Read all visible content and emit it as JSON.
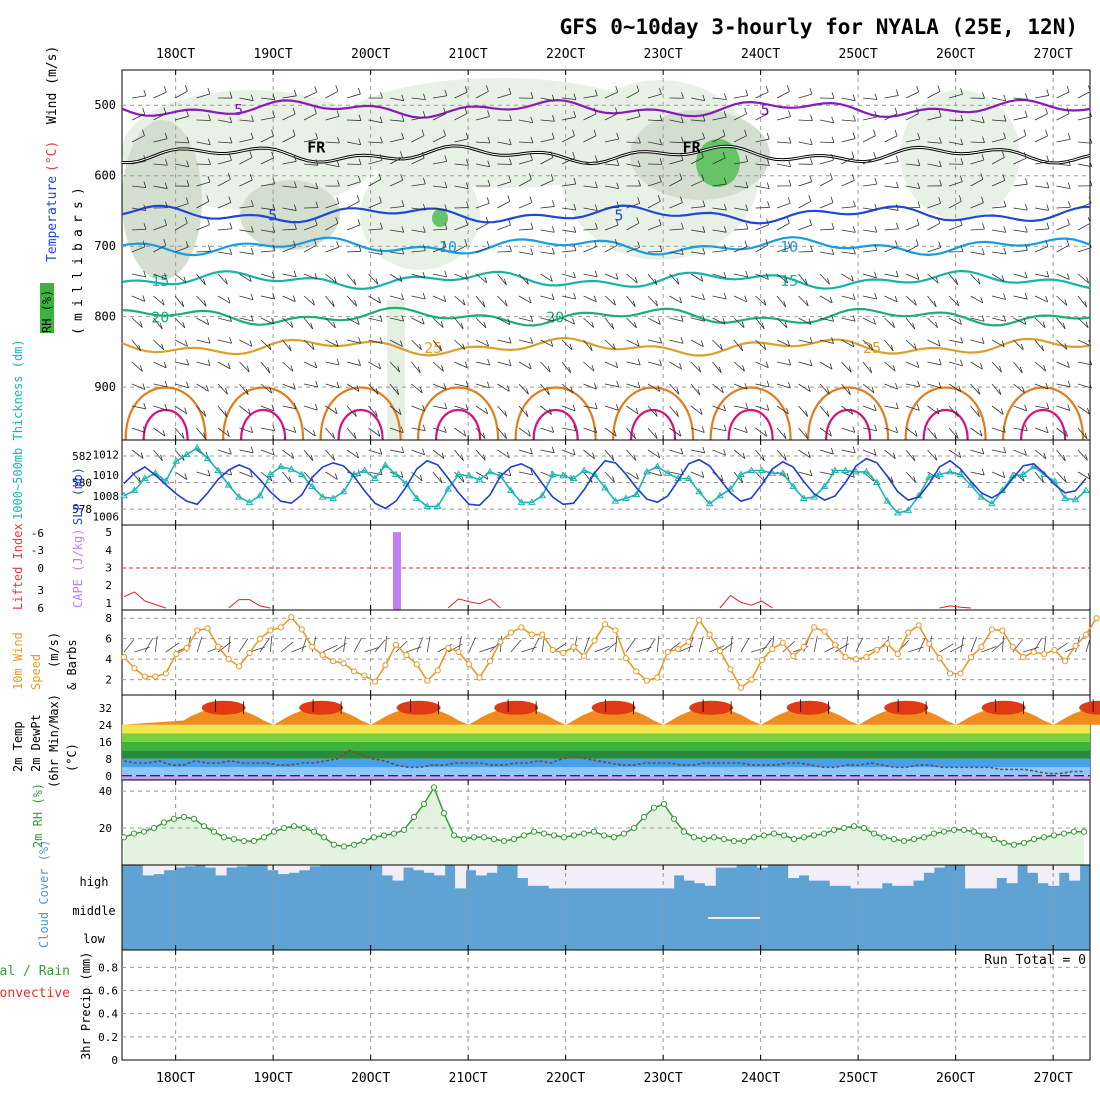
{
  "title": "GFS 0~10day 3-hourly for NYALA (25E, 12N)",
  "dates": [
    "18OCT",
    "19OCT",
    "20OCT",
    "21OCT",
    "22OCT",
    "23OCT",
    "24OCT",
    "25OCT",
    "26OCT",
    "27OCT"
  ],
  "run_total": "Run Total = 0",
  "colors": {
    "purple": "#8a1ab8",
    "black": "#000000",
    "blue": "#1f48d6",
    "skyblue": "#1a9ce0",
    "teal": "#16b4a8",
    "green": "#1fae74",
    "gold": "#dca02a",
    "orange": "#e07d1e",
    "magenta": "#d8137a",
    "cloud": "#5fa3d4",
    "rh_green": "#4ca84c",
    "precip": "#e83030"
  },
  "chart_data": [
    {
      "type": "line",
      "panel": "sounding",
      "title": "Temperature (°C) / Wind (m/s) / RH (%)",
      "ylabel": "(millibars)",
      "ylabel_letters": [
        "(",
        "m",
        "i",
        "l",
        "l",
        "i",
        "b",
        "a",
        "r",
        "s",
        ")"
      ],
      "label_rh": "RH (%)",
      "label_temp": "Temperature",
      "label_temp_unit": "(°C)",
      "label_wind": "Wind (m/s)",
      "y_ticks": [
        500,
        600,
        700,
        800,
        900
      ],
      "ylim": [
        450,
        975
      ],
      "isotherms": [
        {
          "name": "5 upper",
          "level_mb": 505,
          "color": "#8a1ab8",
          "labels": [
            {
              "day": 0.6,
              "text": "5"
            },
            {
              "day": 6.0,
              "text": "5"
            }
          ]
        },
        {
          "name": "FR",
          "level_mb": 570,
          "color": "#000000",
          "labels": [
            {
              "day": 1.35,
              "text": "FR"
            },
            {
              "day": 5.2,
              "text": "FR"
            }
          ]
        },
        {
          "name": "5",
          "level_mb": 655,
          "color": "#1f48d6",
          "labels": [
            {
              "day": 0.95,
              "text": "5"
            },
            {
              "day": 4.5,
              "text": "5"
            }
          ]
        },
        {
          "name": "10",
          "level_mb": 700,
          "color": "#1a9ce0",
          "labels": [
            {
              "day": 2.7,
              "text": "10"
            },
            {
              "day": 6.2,
              "text": "10"
            }
          ]
        },
        {
          "name": "15",
          "level_mb": 748,
          "color": "#16b4a8",
          "labels": [
            {
              "day": -0.25,
              "text": "15"
            },
            {
              "day": 6.2,
              "text": "15"
            }
          ]
        },
        {
          "name": "20",
          "level_mb": 800,
          "color": "#1fae74",
          "labels": [
            {
              "day": -0.25,
              "text": "20"
            },
            {
              "day": 3.8,
              "text": "20"
            }
          ]
        },
        {
          "name": "25",
          "level_mb": 843,
          "color": "#dca02a",
          "labels": [
            {
              "day": 2.55,
              "text": "25"
            },
            {
              "day": 7.05,
              "text": "25"
            }
          ]
        }
      ]
    },
    {
      "type": "line",
      "panel": "thickness_slp",
      "ylabel_left": "1000~500mb Thickness (dm)",
      "ylabel_right": "SLP (mb)",
      "left_ticks": [
        578,
        580,
        582
      ],
      "right_ticks": [
        1006,
        1008,
        1010,
        1012
      ],
      "series": [
        {
          "name": "Thickness",
          "color": "#1fb3b3",
          "values": [
            579.0,
            579.4,
            580.3,
            580.7,
            580.1,
            581.6,
            582.1,
            582.6,
            581.8,
            580.9,
            579.8,
            578.9,
            578.5,
            579.0,
            580.6,
            581.2,
            581.0,
            580.6,
            579.7,
            578.9,
            578.8,
            579.3,
            580.6,
            580.9,
            580.3,
            581.3,
            580.6,
            579.9,
            578.8,
            578.2,
            578.2,
            579.5,
            580.6,
            580.5,
            580.2,
            580.8,
            580.5,
            579.4,
            578.5,
            578.5,
            579.0,
            580.6,
            580.5,
            580.3,
            580.9,
            580.6,
            579.6,
            578.6,
            578.8,
            579.1,
            580.8,
            581.2,
            580.7,
            580.3,
            580.3,
            579.3,
            578.4,
            579.0,
            579.5,
            580.6,
            580.9,
            580.9,
            580.7,
            580.7,
            579.7,
            578.8,
            578.9,
            579.7,
            580.9,
            580.9,
            580.8,
            580.8,
            580.0,
            578.6,
            577.7,
            577.9,
            579.0,
            580.4,
            580.6,
            580.8,
            580.6,
            579.8,
            578.9,
            578.4,
            579.4,
            580.5,
            580.6,
            581.2,
            580.6,
            580.1,
            578.8,
            578.7,
            579.4
          ]
        },
        {
          "name": "SLP",
          "color": "#1f3fd0",
          "values": [
            1009.2,
            1010.2,
            1010.8,
            1010.0,
            1009.1,
            1008.2,
            1007.5,
            1007.2,
            1008.3,
            1009.6,
            1010.5,
            1011.0,
            1010.6,
            1009.6,
            1008.4,
            1007.5,
            1007.3,
            1008.1,
            1009.8,
            1010.8,
            1011.2,
            1010.9,
            1009.9,
            1008.5,
            1007.3,
            1006.8,
            1007.5,
            1008.9,
            1010.6,
            1011.4,
            1011.0,
            1009.7,
            1008.3,
            1007.2,
            1007.1,
            1008.1,
            1009.9,
            1010.8,
            1011.1,
            1010.6,
            1009.2,
            1007.9,
            1007.2,
            1007.3,
            1008.6,
            1010.2,
            1011.4,
            1011.2,
            1010.1,
            1008.8,
            1007.7,
            1007.4,
            1008.0,
            1009.5,
            1011.1,
            1011.5,
            1010.9,
            1009.6,
            1008.3,
            1007.5,
            1007.8,
            1009.1,
            1010.6,
            1011.3,
            1010.8,
            1009.4,
            1008.2,
            1007.6,
            1008.0,
            1009.3,
            1010.9,
            1011.6,
            1011.2,
            1009.9,
            1008.4,
            1007.6,
            1007.9,
            1009.2,
            1010.8,
            1011.4,
            1010.6,
            1009.4,
            1008.3,
            1007.8,
            1008.4,
            1009.7,
            1010.9,
            1011.1,
            1010.2,
            1009.1,
            1008.3,
            1008.5,
            1009.7
          ]
        }
      ]
    },
    {
      "type": "line",
      "panel": "cape_li",
      "ylabel_left": "Lifted Index",
      "ylabel_right": "CAPE (J/kg)",
      "left_ticks": [
        "-6",
        "-3",
        "0",
        "3",
        "6"
      ],
      "right_ticks": [
        1,
        2,
        3,
        4,
        5
      ],
      "cape_bar": {
        "day": 2.27,
        "value": 5.0,
        "color": "#c080f0"
      },
      "li_series": {
        "color": "#e02020",
        "values": [
          1.6,
          2.3,
          1.0,
          0.5,
          0,
          0,
          0,
          0,
          0,
          0,
          0,
          1.2,
          1.2,
          0.3,
          0,
          0,
          0,
          0,
          0,
          0,
          0,
          0,
          0,
          0,
          0,
          0,
          0,
          0,
          0,
          0,
          0,
          0,
          1.3,
          0.9,
          0.6,
          1.3,
          0,
          0,
          0,
          0,
          0,
          0,
          0,
          0,
          0,
          0,
          0,
          0,
          0,
          0,
          0,
          0,
          0,
          0,
          0,
          0,
          0,
          0,
          1.8,
          0.8,
          0.4,
          1.0,
          0,
          0,
          0,
          0,
          0,
          0,
          0,
          0,
          0,
          0,
          0,
          0,
          0,
          0,
          0,
          0,
          0,
          0.3,
          0.1,
          0,
          0,
          0,
          0,
          0,
          0,
          0,
          0,
          0,
          0,
          0,
          0
        ]
      }
    },
    {
      "type": "line",
      "panel": "wind10m",
      "ylabel": "10m Wind Speed (m/s) & Barbs",
      "ylabel_lines": [
        "10m Wind",
        "Speed",
        "(m/s)",
        "& Barbs"
      ],
      "y_ticks": [
        2,
        4,
        6,
        8
      ],
      "series": [
        {
          "name": "Speed",
          "color": "#e89a2a",
          "values": [
            4.2,
            3.1,
            2.3,
            2.3,
            2.6,
            4.5,
            5.1,
            6.8,
            7.0,
            5.2,
            4.0,
            3.3,
            4.6,
            6.0,
            6.8,
            7.1,
            8.1,
            6.9,
            5.2,
            4.4,
            3.8,
            3.6,
            2.8,
            2.4,
            1.8,
            3.4,
            5.4,
            4.4,
            3.5,
            1.9,
            2.9,
            5.1,
            4.7,
            3.5,
            2.2,
            3.8,
            5.7,
            6.6,
            7.1,
            6.4,
            6.4,
            4.9,
            4.6,
            5.2,
            4.3,
            5.8,
            7.4,
            6.8,
            4.1,
            2.8,
            1.9,
            2.2,
            4.7,
            5.0,
            5.7,
            7.8,
            6.4,
            4.8,
            3.0,
            1.2,
            2.0,
            3.9,
            5.0,
            5.6,
            4.3,
            5.2,
            7.1,
            6.7,
            5.4,
            4.2,
            4.0,
            4.2,
            4.9,
            5.5,
            4.5,
            6.6,
            7.3,
            5.5,
            4.1,
            2.6,
            2.6,
            4.2,
            5.2,
            6.9,
            6.8,
            5.2,
            4.2,
            4.7,
            4.5,
            4.9,
            3.8,
            5.3,
            6.4,
            8.0
          ]
        }
      ]
    },
    {
      "type": "area",
      "panel": "temp_dewpt",
      "ylabel_lines": [
        "2m Temp",
        "2m DewPt",
        "(6hr Min/Max)",
        "(°C)"
      ],
      "y_ticks": [
        0,
        8,
        16,
        24,
        32
      ],
      "temp_min": 24,
      "temp_max": 35,
      "dewpoint": [
        7,
        6,
        6,
        7,
        5,
        5,
        7,
        6,
        6,
        7,
        6,
        6,
        6,
        5,
        5,
        6,
        6,
        7,
        8,
        12,
        10,
        8,
        7,
        5,
        4,
        4,
        5,
        5,
        6,
        6,
        6,
        5,
        5,
        6,
        6,
        7,
        6,
        8,
        9,
        8,
        7,
        6,
        5,
        5,
        6,
        6,
        6,
        5,
        5,
        6,
        6,
        6,
        6,
        5,
        5,
        5,
        6,
        6,
        5,
        4,
        4,
        5,
        5,
        6,
        5,
        4,
        4,
        5,
        5,
        4,
        4,
        4,
        4,
        4,
        3,
        3,
        3,
        2,
        1,
        1,
        2,
        2
      ]
    },
    {
      "type": "area",
      "panel": "rh2m",
      "ylabel": "2m RH (%)",
      "y_ticks": [
        20,
        40
      ],
      "series": [
        {
          "name": "RH",
          "color": "#3a9a3a",
          "values": [
            15,
            17,
            18,
            20,
            23,
            25,
            26,
            25,
            21,
            18,
            15,
            14,
            13,
            13,
            15,
            18,
            20,
            21,
            20,
            18,
            15,
            11,
            10,
            11,
            13,
            15,
            16,
            17,
            19,
            26,
            33,
            42,
            28,
            16,
            14,
            15,
            15,
            14,
            13,
            14,
            16,
            18,
            17,
            16,
            15,
            16,
            17,
            18,
            16,
            15,
            17,
            20,
            26,
            31,
            33,
            25,
            18,
            15,
            14,
            15,
            14,
            13,
            13,
            15,
            16,
            17,
            16,
            14,
            15,
            16,
            17,
            19,
            20,
            21,
            20,
            17,
            15,
            14,
            13,
            14,
            15,
            17,
            18,
            19,
            19,
            18,
            16,
            14,
            12,
            11,
            12,
            14,
            15,
            16,
            17,
            18,
            18
          ]
        }
      ]
    },
    {
      "type": "bar",
      "panel": "cloud_cover",
      "ylabel": "Cloud Cover (%)",
      "levels": [
        "high",
        "middle",
        "low"
      ],
      "high_gaps": [
        0.0,
        0.0,
        0.4,
        0.35,
        0.2,
        0.1,
        0.05,
        0.0,
        0.1,
        0.4,
        0.1,
        0.05,
        0.0,
        0.0,
        0.2,
        0.35,
        0.3,
        0.2,
        0.05,
        0.0,
        0.0,
        0.0,
        0.0,
        0.0,
        0.0,
        0.4,
        0.6,
        0.1,
        0.2,
        0.3,
        0.4,
        0.0,
        0.9,
        0.2,
        0.4,
        0.3,
        0.0,
        0.0,
        0.5,
        0.8,
        0.8,
        0.9,
        0.9,
        0.9,
        0.9,
        0.9,
        0.9,
        0.9,
        0.9,
        0.9,
        0.9,
        0.9,
        0.9,
        0.4,
        0.6,
        0.7,
        0.8,
        0.1,
        0.1,
        0.0,
        0.0,
        0.1,
        0.0,
        0.0,
        0.5,
        0.4,
        0.6,
        0.6,
        0.8,
        0.8,
        0.9,
        0.9,
        0.9,
        0.7,
        0.8,
        0.8,
        0.6,
        0.3,
        0.1,
        0.0,
        0.0,
        0.9,
        0.9,
        0.9,
        0.5,
        0.7,
        0.0,
        0.3,
        0.7,
        0.8,
        0.3,
        0.6,
        0.0
      ]
    },
    {
      "type": "bar",
      "panel": "precip",
      "ylabel_lines": [
        "Total / Rain",
        "Convective",
        "3hr Precip (mm)"
      ],
      "y_ticks": [
        "0",
        "0.2",
        "0.4",
        "0.6",
        "0.8"
      ],
      "values": []
    }
  ]
}
